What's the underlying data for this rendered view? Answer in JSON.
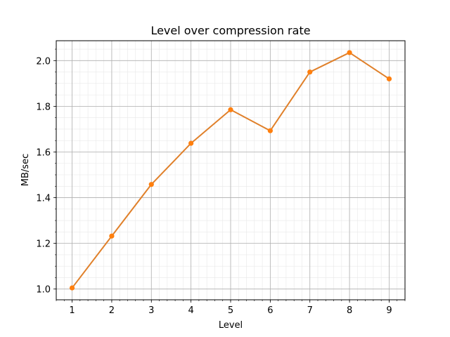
{
  "chart_data": {
    "type": "line",
    "title": "Level over compression rate",
    "xlabel": "Level",
    "ylabel": "MB/sec",
    "x": [
      1,
      2,
      3,
      4,
      5,
      6,
      7,
      8,
      9
    ],
    "series": [
      {
        "values": [
          1.005,
          1.232,
          1.458,
          1.638,
          1.785,
          1.693,
          1.95,
          2.035,
          1.92
        ],
        "color": "#ff7f0e",
        "line_color": "#e0802a"
      }
    ],
    "xlim": [
      0.6,
      9.4
    ],
    "ylim": [
      0.953,
      2.087
    ],
    "x_ticks": [
      "1",
      "2",
      "3",
      "4",
      "5",
      "6",
      "7",
      "8",
      "9"
    ],
    "y_ticks": [
      "1.0",
      "1.2",
      "1.4",
      "1.6",
      "1.8",
      "2.0"
    ],
    "grid": true,
    "minor_grid": true,
    "legend": "none"
  }
}
